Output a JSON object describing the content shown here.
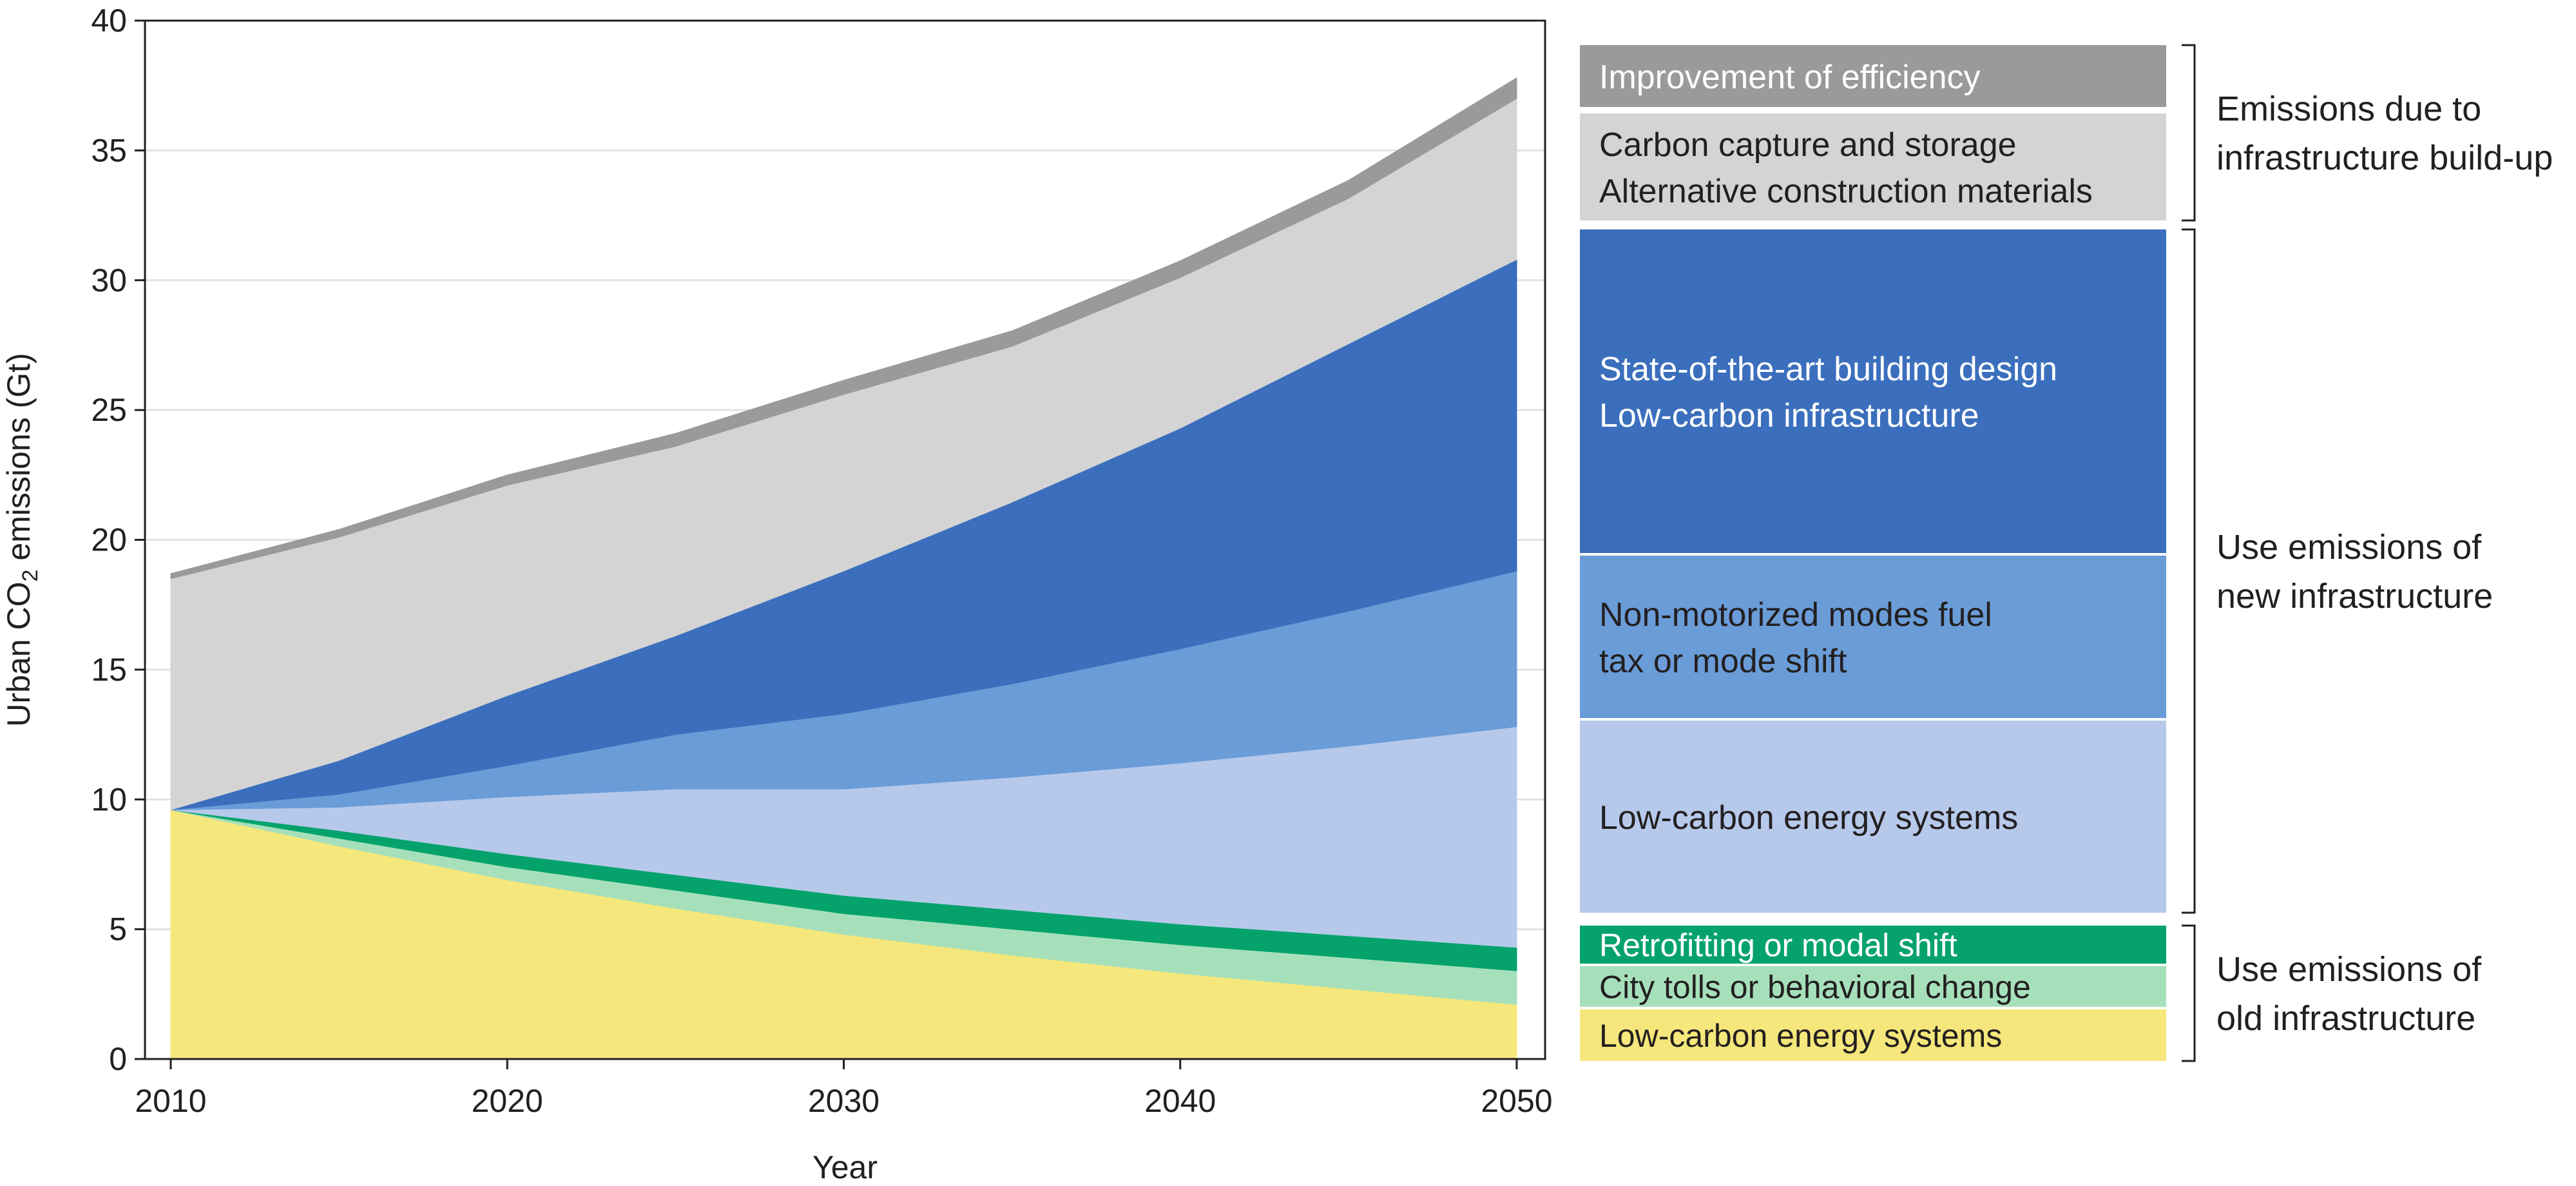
{
  "chart_data": {
    "type": "area",
    "stacked": true,
    "x": [
      2010,
      2015,
      2020,
      2025,
      2030,
      2035,
      2040,
      2045,
      2050
    ],
    "xlabel": "Year",
    "ylabel_prefix": "Urban CO",
    "ylabel_sub": "2",
    "ylabel_suffix": " emissions (Gt)",
    "xlim": [
      2010,
      2050
    ],
    "ylim": [
      0,
      40
    ],
    "xticks": [
      2010,
      2020,
      2030,
      2040,
      2050
    ],
    "yticks": [
      0,
      5,
      10,
      15,
      20,
      25,
      30,
      35,
      40
    ],
    "grid": "horizontal",
    "series": [
      {
        "name": "Low-carbon energy systems",
        "color": "#f5e77b",
        "text_color": "#231f20",
        "values": [
          9.6,
          8.2,
          6.9,
          5.8,
          4.8,
          4.0,
          3.3,
          2.7,
          2.1
        ]
      },
      {
        "name": "City tolls or behavioral change",
        "color": "#a6e0bb",
        "text_color": "#231f20",
        "values": [
          0.0,
          0.3,
          0.5,
          0.7,
          0.8,
          1.0,
          1.1,
          1.2,
          1.3
        ]
      },
      {
        "name": "Retrofitting or modal shift",
        "color": "#05a36b",
        "text_color": "#ffffff",
        "values": [
          0.0,
          0.3,
          0.5,
          0.6,
          0.7,
          0.75,
          0.8,
          0.85,
          0.9
        ]
      },
      {
        "name": "Low-carbon energy systems",
        "color": "#b6c9ea",
        "text_color": "#231f20",
        "values": [
          0.0,
          0.9,
          2.2,
          3.3,
          4.1,
          5.1,
          6.2,
          7.3,
          8.5
        ]
      },
      {
        "name": "Non-motorized modes fuel tax or mode shift",
        "color": "#6a9cd8",
        "text_color": "#231f20",
        "values": [
          0.0,
          0.5,
          1.2,
          2.1,
          2.9,
          3.6,
          4.4,
          5.2,
          6.0
        ]
      },
      {
        "name": "State-of-the-art building design Low-carbon infrastructure",
        "color": "#3b6fbd",
        "text_color": "#ffffff",
        "values": [
          0.0,
          1.3,
          2.7,
          3.8,
          5.5,
          7.0,
          8.5,
          10.3,
          12.0
        ]
      },
      {
        "name": "Carbon capture and storage Alternative construction materials",
        "color": "#d4d4d4",
        "text_color": "#231f20",
        "values": [
          8.9,
          8.6,
          8.1,
          7.3,
          6.8,
          6.0,
          5.8,
          5.6,
          6.2
        ]
      },
      {
        "name": "Improvement of efficiency",
        "color": "#9a9a9b",
        "text_color": "#ffffff",
        "values": [
          0.2,
          0.3,
          0.4,
          0.5,
          0.55,
          0.6,
          0.65,
          0.7,
          0.8
        ]
      }
    ],
    "legend": {
      "placement": "right",
      "boxes": [
        {
          "lines": [
            "Improvement of efficiency"
          ],
          "color": "#9a9a9b",
          "text_color": "#ffffff"
        },
        {
          "lines": [
            "Carbon capture and storage",
            "Alternative construction materials"
          ],
          "color": "#d4d4d4",
          "text_color": "#231f20"
        },
        {
          "lines": [
            "State-of-the-art building design",
            "Low-carbon infrastructure"
          ],
          "color": "#3b6fbd",
          "text_color": "#ffffff"
        },
        {
          "lines": [
            "Non-motorized modes fuel",
            "tax or mode shift"
          ],
          "color": "#6a9cd8",
          "text_color": "#231f20"
        },
        {
          "lines": [
            "Low-carbon energy systems"
          ],
          "color": "#b6c9ea",
          "text_color": "#231f20"
        },
        {
          "lines": [
            "Retrofitting or modal shift"
          ],
          "color": "#05a36b",
          "text_color": "#ffffff"
        },
        {
          "lines": [
            "City tolls or behavioral change"
          ],
          "color": "#a6e0bb",
          "text_color": "#231f20"
        },
        {
          "lines": [
            "Low-carbon energy systems"
          ],
          "color": "#f5e77b",
          "text_color": "#231f20"
        }
      ],
      "groups": [
        {
          "lines": [
            "Emissions due to",
            "infrastructure build-up"
          ]
        },
        {
          "lines": [
            "Use emissions of",
            "new infrastructure"
          ]
        },
        {
          "lines": [
            "Use emissions of",
            "old infrastructure"
          ]
        }
      ]
    }
  }
}
